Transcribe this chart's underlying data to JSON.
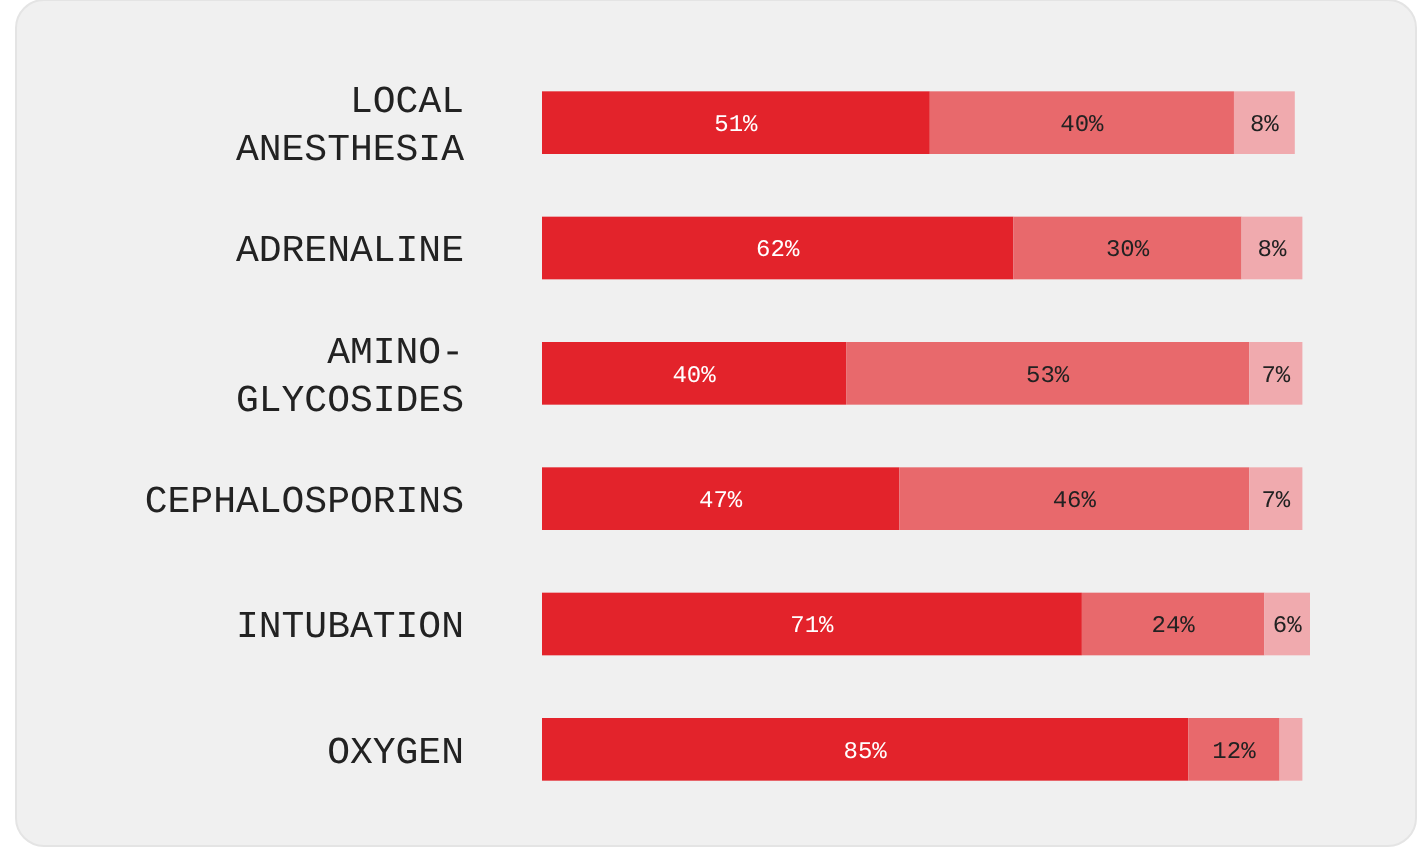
{
  "chart_data": {
    "type": "bar",
    "orientation": "horizontal",
    "stacked": true,
    "categories": [
      "LOCAL ANESTHESIA",
      "ADRENALINE",
      "AMINO-GLYCOSIDES",
      "CEPHALOSPORINS",
      "INTUBATION",
      "OXYGEN"
    ],
    "xlim": [
      0,
      101
    ],
    "series": [
      {
        "color": "#e3232b",
        "values": [
          51,
          62,
          40,
          47,
          71,
          85
        ],
        "value_labels": [
          "51%",
          "62%",
          "40%",
          "47%",
          "71%",
          "85%"
        ]
      },
      {
        "color": "#e8696c",
        "values": [
          40,
          30,
          53,
          46,
          24,
          12
        ],
        "value_labels": [
          "40%",
          "30%",
          "53%",
          "46%",
          "24%",
          "12%"
        ]
      },
      {
        "color": "#f0aaae",
        "values": [
          8,
          8,
          7,
          7,
          6,
          3
        ],
        "value_labels": [
          "8%",
          "8%",
          "7%",
          "7%",
          "6%",
          null
        ]
      }
    ]
  }
}
